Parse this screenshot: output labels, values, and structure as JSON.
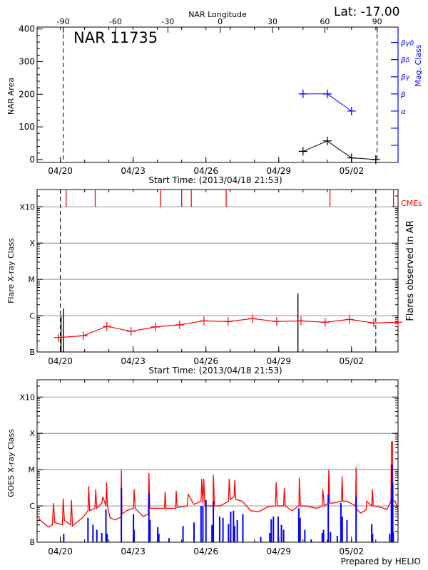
{
  "header": {
    "lat_label": "Lat: -17.00",
    "footer": "Prepared by HELIO"
  },
  "colors": {
    "axis": "#000000",
    "grid": "#a0a0a0",
    "red": "#ff0000",
    "blue": "#0000ff"
  },
  "chart_data": [
    {
      "type": "line",
      "title": "NAR 11735",
      "xlabel": "Start Time: (2013/04/18 21:53)",
      "top_xlabel": "NAR Longitude",
      "ylabel": "NAR Area",
      "y2label": "Mag. Class",
      "xlim": [
        "04/19 01:00",
        "05/03 22:00"
      ],
      "xticks": [
        "04/20",
        "04/23",
        "04/26",
        "04/29",
        "05/02"
      ],
      "top_xlim": [
        -105,
        102
      ],
      "top_xticks": [
        -90,
        -60,
        -30,
        0,
        30,
        60,
        90
      ],
      "dashed_longitudes": [
        -90,
        90
      ],
      "ylim": [
        -9,
        406
      ],
      "yticks": [
        0,
        100,
        200,
        300,
        400
      ],
      "y2lim": [
        0,
        7.9
      ],
      "y2ticks": [
        {
          "value": 1,
          "label": ""
        },
        {
          "value": 2,
          "label": ""
        },
        {
          "value": 3,
          "label": "α"
        },
        {
          "value": 4,
          "label": "β"
        },
        {
          "value": 5,
          "label": "βγ"
        },
        {
          "value": 6,
          "label": "βδ"
        },
        {
          "value": 7,
          "label": "βγδ"
        }
      ],
      "series": [
        {
          "axis": "left",
          "color": "#000000",
          "points": [
            [
              "04/30 00:00",
              25
            ],
            [
              "05/01 00:00",
              57
            ],
            [
              "05/02 00:00",
              5
            ],
            [
              "05/03 00:00",
              0
            ]
          ]
        },
        {
          "axis": "right",
          "color": "#0000ff",
          "points": [
            [
              "04/30 00:00",
              "β"
            ],
            [
              "05/01 00:00",
              "β"
            ],
            [
              "05/02 00:00",
              "α"
            ]
          ]
        }
      ]
    },
    {
      "type": "line",
      "xlabel": "Start Time: (2013/04/18 21:53)",
      "ylabel": "Flare X-ray Class",
      "y2label": "Flares observed in AR",
      "cme_label": "CMEs",
      "xlim": [
        "04/19 01:00",
        "05/03 22:00"
      ],
      "xticks": [
        "04/20",
        "04/23",
        "04/26",
        "04/29",
        "05/02"
      ],
      "yscale": "log",
      "ylim": [
        1e-07,
        0.003
      ],
      "yticks": [
        {
          "value": 1e-07,
          "label": "B"
        },
        {
          "value": 1e-06,
          "label": "C"
        },
        {
          "value": 1e-05,
          "label": "M"
        },
        {
          "value": 0.0001,
          "label": "X"
        },
        {
          "value": 0.001,
          "label": "X10"
        }
      ],
      "grid": true,
      "dashed_times": [
        "04/20 00:00",
        "05/03 00:00"
      ],
      "cmes": [
        "04/20 05:40",
        "04/21 10:30",
        "04/24 03:00",
        "04/25 00:00",
        "04/25 09:30",
        "04/26 20:00",
        "05/01 02:40",
        "05/03 17:30"
      ],
      "flares": [
        [
          "04/20 00:40",
          1e-06
        ],
        [
          "04/20 03:00",
          1.6e-06
        ],
        [
          "04/29 19:00",
          4.1e-06
        ]
      ],
      "series": [
        {
          "color": "#ff0000",
          "points": [
            [
              "04/19 22:00",
              2.5e-07
            ],
            [
              "04/20 22:45",
              2.8e-07
            ],
            [
              "04/21 22:00",
              5.1e-07
            ],
            [
              "04/22 22:00",
              3.7e-07
            ],
            [
              "04/23 22:00",
              4.9e-07
            ],
            [
              "04/24 22:00",
              5.6e-07
            ],
            [
              "04/25 22:00",
              7.2e-07
            ],
            [
              "04/26 22:00",
              6.9e-07
            ],
            [
              "04/27 22:00",
              8.3e-07
            ],
            [
              "04/28 22:00",
              6.9e-07
            ],
            [
              "04/29 22:00",
              7.2e-07
            ],
            [
              "04/30 22:00",
              6.6e-07
            ],
            [
              "05/01 22:00",
              7.9e-07
            ],
            [
              "05/02 22:00",
              6.3e-07
            ],
            [
              "05/03 22:00",
              6.6e-07
            ]
          ]
        }
      ]
    },
    {
      "type": "line",
      "ylabel": "GOES X-ray Class",
      "xlim": [
        "04/19 01:00",
        "05/03 22:00"
      ],
      "xticks": [
        "04/20",
        "04/23",
        "04/26",
        "04/29",
        "05/02"
      ],
      "yscale": "log",
      "ylim": [
        1e-07,
        0.003
      ],
      "yticks": [
        {
          "value": 1e-07,
          "label": "B"
        },
        {
          "value": 1e-06,
          "label": "C"
        },
        {
          "value": 1e-05,
          "label": "M"
        },
        {
          "value": 0.0001,
          "label": "X"
        },
        {
          "value": 0.001,
          "label": "X10"
        }
      ],
      "grid": true,
      "series": [
        {
          "color": "#ff0000",
          "style": "line",
          "points": [
            [
              "04/19 01:00",
              5.5e-07
            ],
            [
              "04/19 04:00",
              4.1e-07
            ],
            [
              "04/19 12:15",
              2.6e-07
            ],
            [
              "04/19 16:00",
              3e-07
            ],
            [
              "04/19 17:15",
              1.2e-06
            ],
            [
              "04/19 18:30",
              3.5e-07
            ],
            [
              "04/20 02:00",
              3e-07
            ],
            [
              "04/20 02:50",
              1.6e-06
            ],
            [
              "04/20 04:00",
              4e-07
            ],
            [
              "04/20 10:00",
              3e-07
            ],
            [
              "04/20 11:00",
              1.45e-06
            ],
            [
              "04/20 12:00",
              2.8e-07
            ],
            [
              "04/20 21:50",
              4.7e-07
            ],
            [
              "04/21 03:20",
              7.4e-07
            ],
            [
              "04/21 04:00",
              3.5e-06
            ],
            [
              "04/21 05:00",
              7.4e-07
            ],
            [
              "04/21 10:10",
              8.6e-07
            ],
            [
              "04/21 11:00",
              2.9e-06
            ],
            [
              "04/21 12:00",
              8.6e-07
            ],
            [
              "04/21 17:00",
              1.2e-06
            ],
            [
              "04/21 18:00",
              1.8e-06
            ],
            [
              "04/21 21:05",
              1e-06
            ],
            [
              "04/21 21:45",
              4.5e-06
            ],
            [
              "04/21 22:30",
              1e-06
            ],
            [
              "04/22 01:10",
              4.7e-07
            ],
            [
              "04/22 06:40",
              4.1e-07
            ],
            [
              "04/22 12:00",
              5e-07
            ],
            [
              "04/22 12:20",
              9.8e-06
            ],
            [
              "04/22 13:00",
              6e-07
            ],
            [
              "04/22 17:30",
              7.4e-07
            ],
            [
              "04/23 00:20",
              8.6e-07
            ],
            [
              "04/23 01:00",
              2.9e-06
            ],
            [
              "04/23 02:00",
              8.6e-07
            ],
            [
              "04/23 09:50",
              5.1e-07
            ],
            [
              "04/23 15:00",
              6e-07
            ],
            [
              "04/23 15:35",
              8.1e-06
            ],
            [
              "04/23 16:30",
              8.6e-07
            ],
            [
              "04/23 20:50",
              8.6e-07
            ],
            [
              "04/24 07:00",
              8.6e-07
            ],
            [
              "04/24 07:40",
              2.5e-06
            ],
            [
              "04/24 08:30",
              8.6e-07
            ],
            [
              "04/24 18:00",
              8.6e-07
            ],
            [
              "04/24 18:35",
              2.6e-06
            ],
            [
              "04/24 19:30",
              9e-07
            ],
            [
              "04/25 05:30",
              1e-06
            ],
            [
              "04/25 06:30",
              2.1e-06
            ],
            [
              "04/25 12:00",
              1.1e-06
            ],
            [
              "04/25 19:10",
              1.35e-06
            ],
            [
              "04/25 19:50",
              5.6e-06
            ],
            [
              "04/25 21:00",
              1.2e-06
            ],
            [
              "04/25 21:50",
              5.6e-06
            ],
            [
              "04/25 23:00",
              1e-06
            ],
            [
              "04/26 07:00",
              1e-06
            ],
            [
              "04/26 07:20",
              7.2e-06
            ],
            [
              "04/26 08:30",
              1e-06
            ],
            [
              "04/26 14:10",
              1e-06
            ],
            [
              "04/26 22:20",
              1.35e-06
            ],
            [
              "04/26 23:00",
              5.6e-06
            ],
            [
              "04/27 00:00",
              1.5e-06
            ],
            [
              "04/27 03:50",
              1.8e-06
            ],
            [
              "04/27 04:30",
              5.1e-06
            ],
            [
              "04/27 05:30",
              1.5e-06
            ],
            [
              "04/27 12:00",
              1.35e-06
            ],
            [
              "04/27 20:10",
              7.4e-07
            ],
            [
              "04/28 04:20",
              6.9e-07
            ],
            [
              "04/28 12:30",
              9.3e-07
            ],
            [
              "04/28 20:40",
              1e-06
            ],
            [
              "04/28 21:30",
              4.5e-06
            ],
            [
              "04/28 22:30",
              1e-06
            ],
            [
              "04/29 04:50",
              1e-06
            ],
            [
              "04/29 05:30",
              3.1e-06
            ],
            [
              "04/29 06:30",
              1e-06
            ],
            [
              "04/29 13:00",
              7.4e-07
            ],
            [
              "04/29 20:00",
              1e-06
            ],
            [
              "04/29 20:20",
              6e-06
            ],
            [
              "04/29 21:30",
              1e-06
            ],
            [
              "04/30 02:40",
              1e-06
            ],
            [
              "04/30 13:30",
              8.6e-07
            ],
            [
              "04/30 19:00",
              1e-06
            ],
            [
              "04/30 19:40",
              2.9e-06
            ],
            [
              "04/30 21:00",
              1e-06
            ],
            [
              "05/01 01:00",
              1.2e-06
            ],
            [
              "05/01 01:30",
              9.8e-06
            ],
            [
              "05/01 02:30",
              1.2e-06
            ],
            [
              "05/01 05:50",
              1.2e-06
            ],
            [
              "05/01 14:05",
              1.35e-06
            ],
            [
              "05/01 14:40",
              6.5e-06
            ],
            [
              "05/01 15:30",
              1.35e-06
            ],
            [
              "05/01 19:30",
              1.35e-06
            ],
            [
              "05/02 04:00",
              1e-06
            ],
            [
              "05/02 04:30",
              1.15e-05
            ],
            [
              "05/02 05:00",
              8e-07
            ],
            [
              "05/02 09:10",
              6.3e-07
            ],
            [
              "05/02 14:35",
              8e-07
            ],
            [
              "05/02 15:00",
              1.35e-06
            ],
            [
              "05/02 20:00",
              1e-06
            ],
            [
              "05/02 20:40",
              2.9e-06
            ],
            [
              "05/02 21:30",
              1e-06
            ],
            [
              "05/03 04:15",
              9.3e-07
            ],
            [
              "05/03 11:00",
              8e-07
            ],
            [
              "05/03 15:00",
              1.35e-06
            ],
            [
              "05/03 15:25",
              5.8e-05
            ],
            [
              "05/03 16:30",
              5.9e-05
            ],
            [
              "05/03 17:00",
              1.4e-06
            ],
            [
              "05/03 19:10",
              1.35e-06
            ],
            [
              "05/03 23:20",
              8e-07
            ]
          ]
        },
        {
          "color": "#0000ff",
          "style": "bars",
          "points": [
            [
              "04/20 03:20",
              1.7e-07
            ],
            [
              "04/21 03:20",
              4.7e-07
            ],
            [
              "04/21 08:15",
              3e-07
            ],
            [
              "04/21 12:05",
              2.2e-07
            ],
            [
              "04/21 17:00",
              1.8e-07
            ],
            [
              "04/21 21:05",
              8e-07
            ],
            [
              "04/21 22:10",
              1.7e-07
            ],
            [
              "04/22 12:20",
              3.1e-06
            ],
            [
              "04/23 00:20",
              5.9e-07
            ],
            [
              "04/23 00:55",
              2.2e-07
            ],
            [
              "04/23 15:35",
              2.3e-06
            ],
            [
              "04/23 16:40",
              4.1e-07
            ],
            [
              "04/24 00:20",
              2.6e-07
            ],
            [
              "04/24 01:25",
              1.7e-07
            ],
            [
              "04/24 11:30",
              1.3e-07
            ],
            [
              "04/25 01:20",
              2.8e-07
            ],
            [
              "04/25 12:15",
              3.5e-07
            ],
            [
              "04/25 19:10",
              1e-06
            ],
            [
              "04/25 21:00",
              1e-06
            ],
            [
              "04/26 00:00",
              1.45e-06
            ],
            [
              "04/26 06:00",
              3e-07
            ],
            [
              "04/26 07:20",
              1.35e-06
            ],
            [
              "04/26 13:35",
              5.1e-07
            ],
            [
              "04/26 16:50",
              4.7e-07
            ],
            [
              "04/26 22:20",
              3.2e-07
            ],
            [
              "04/27 00:30",
              6.9e-07
            ],
            [
              "04/27 03:15",
              7.4e-07
            ],
            [
              "04/27 04:20",
              2.8e-07
            ],
            [
              "04/27 07:00",
              4.1e-07
            ],
            [
              "04/27 12:30",
              5.9e-07
            ],
            [
              "04/28 06:15",
              1.4e-07
            ],
            [
              "04/28 15:10",
              1.8e-07
            ],
            [
              "04/28 16:35",
              4.3e-07
            ],
            [
              "04/28 18:45",
              5.1e-07
            ],
            [
              "04/28 23:25",
              5.1e-07
            ],
            [
              "04/29 02:40",
              3e-07
            ],
            [
              "04/29 04:50",
              2.2e-07
            ],
            [
              "04/29 19:50",
              8.6e-07
            ],
            [
              "04/29 21:10",
              4.7e-07
            ],
            [
              "04/30 01:50",
              2.2e-07
            ],
            [
              "04/30 08:05",
              1.2e-07
            ],
            [
              "04/30 19:00",
              1.8e-07
            ],
            [
              "04/30 20:20",
              2.2e-07
            ],
            [
              "05/01 01:00",
              2.1e-06
            ],
            [
              "05/01 03:10",
              1.9e-07
            ],
            [
              "05/01 09:55",
              1.5e-07
            ],
            [
              "05/01 13:30",
              1.2e-06
            ],
            [
              "05/01 14:50",
              5.1e-07
            ],
            [
              "05/01 19:30",
              4.1e-07
            ],
            [
              "05/02 04:30",
              1.8e-06
            ],
            [
              "05/02 20:00",
              3.2e-07
            ],
            [
              "05/02 20:50",
              1.7e-07
            ],
            [
              "05/03 13:45",
              1.7e-07
            ],
            [
              "05/03 15:25",
              1.6e-06
            ],
            [
              "05/03 15:55",
              1.4e-05
            ],
            [
              "05/03 16:45",
              4.2e-06
            ],
            [
              "05/03 17:15",
              1.9e-07
            ]
          ]
        }
      ]
    }
  ]
}
